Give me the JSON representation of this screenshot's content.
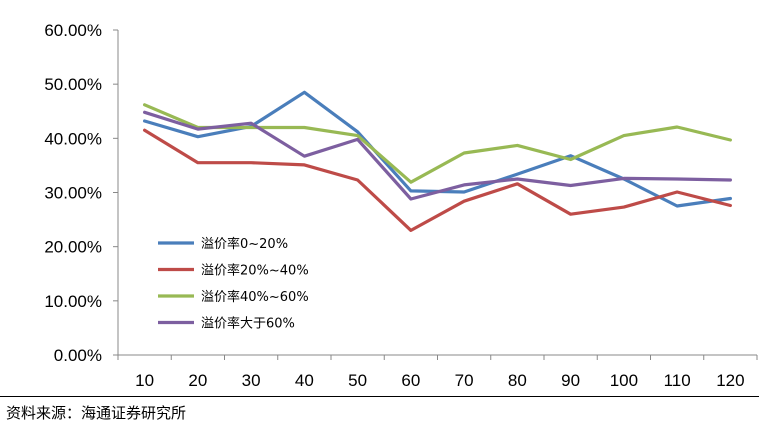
{
  "chart_data": {
    "type": "line",
    "title": "",
    "xlabel": "",
    "ylabel": "",
    "categories": [
      "10",
      "20",
      "30",
      "40",
      "50",
      "60",
      "70",
      "80",
      "90",
      "100",
      "110",
      "120"
    ],
    "ylim": [
      0,
      60
    ],
    "yticks": [
      "0.00%",
      "10.00%",
      "20.00%",
      "30.00%",
      "40.00%",
      "50.00%",
      "60.00%"
    ],
    "grid": false,
    "legend_position": "left-middle",
    "series": [
      {
        "name": "溢价率0~20%",
        "color": "#4a7ebb",
        "values": [
          43.2,
          40.3,
          42.2,
          48.5,
          41.2,
          30.3,
          30.1,
          33.4,
          36.8,
          32.5,
          27.5,
          28.9
        ]
      },
      {
        "name": "溢价率20%~40%",
        "color": "#be4b48",
        "values": [
          41.5,
          35.5,
          35.5,
          35.1,
          32.3,
          23.0,
          28.4,
          31.6,
          26.0,
          27.3,
          30.1,
          27.6
        ]
      },
      {
        "name": "溢价率40%~60%",
        "color": "#98b954",
        "values": [
          46.2,
          42.0,
          42.0,
          42.0,
          40.5,
          31.9,
          37.3,
          38.7,
          36.1,
          40.5,
          42.1,
          39.7
        ]
      },
      {
        "name": "溢价率大于60%",
        "color": "#7d5fa0",
        "values": [
          44.8,
          41.7,
          42.8,
          36.7,
          39.8,
          28.8,
          31.4,
          32.5,
          31.3,
          32.6,
          32.5,
          32.3
        ]
      }
    ]
  },
  "footer": {
    "source": "资料来源：海通证券研究所"
  }
}
